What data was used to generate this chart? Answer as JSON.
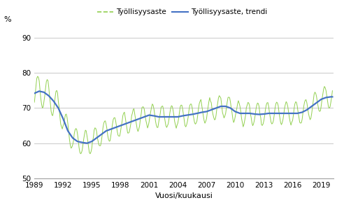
{
  "title": "",
  "ylabel": "%",
  "xlabel": "Vuosi/kuukausi",
  "legend_employment": "Työllisyysaste",
  "legend_trend": "Työllisyysaste, trendi",
  "ylim": [
    50,
    92
  ],
  "yticks": [
    50,
    60,
    70,
    80,
    90
  ],
  "xticks": [
    1989,
    1992,
    1995,
    1998,
    2001,
    2004,
    2007,
    2010,
    2013,
    2016,
    2019
  ],
  "line_color": "#4472c4",
  "employment_color": "#92d050",
  "background_color": "#ffffff",
  "grid_color": "#c0c0c0"
}
